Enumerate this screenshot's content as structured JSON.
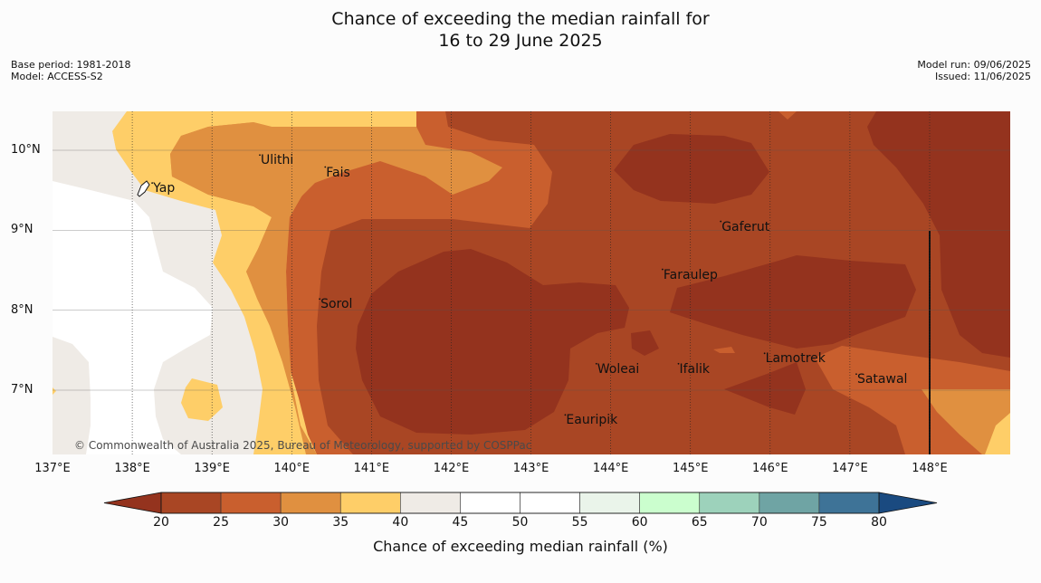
{
  "title_line1": "Chance of exceeding the median rainfall for",
  "title_line2": "16 to 29 June 2025",
  "meta_left": [
    "Base period: 1981-2018",
    "Model: ACCESS-S2"
  ],
  "meta_right": [
    "Model run: 09/06/2025",
    "Issued: 11/06/2025"
  ],
  "map": {
    "lon_range": [
      137,
      149
    ],
    "lat_range": [
      6.2,
      10.5
    ],
    "lon_ticks": [
      "137°E",
      "138°E",
      "139°E",
      "140°E",
      "141°E",
      "142°E",
      "143°E",
      "144°E",
      "145°E",
      "146°E",
      "147°E",
      "148°E"
    ],
    "lat_ticks": [
      "10°N",
      "9°N",
      "8°N",
      "7°N"
    ],
    "places": [
      {
        "name": "Ulithi",
        "lon": 139.6,
        "lat": 9.85
      },
      {
        "name": "Fais",
        "lon": 140.42,
        "lat": 9.7
      },
      {
        "name": "Yap",
        "lon": 138.25,
        "lat": 9.5
      },
      {
        "name": "Gaferut",
        "lon": 145.38,
        "lat": 9.02
      },
      {
        "name": "Faraulep",
        "lon": 144.65,
        "lat": 8.42
      },
      {
        "name": "Sorol",
        "lon": 140.35,
        "lat": 8.05
      },
      {
        "name": "Lamotrek",
        "lon": 145.93,
        "lat": 7.37
      },
      {
        "name": "Woleai",
        "lon": 143.82,
        "lat": 7.24
      },
      {
        "name": "Ifalik",
        "lon": 144.85,
        "lat": 7.24
      },
      {
        "name": "Satawal",
        "lon": 147.08,
        "lat": 7.11
      },
      {
        "name": "Eauripik",
        "lon": 143.43,
        "lat": 6.6
      }
    ],
    "copyright": "© Commonwealth of Australia 2025, Bureau of Meteorology, supported by COSPPac"
  },
  "colorbar": {
    "ticks": [
      "20",
      "25",
      "30",
      "35",
      "40",
      "45",
      "50",
      "55",
      "60",
      "65",
      "70",
      "75",
      "80"
    ],
    "colors": [
      "#a94624",
      "#c95f2e",
      "#e09040",
      "#fece68",
      "#efebe6",
      "#ffffff",
      "#ffffff",
      "#eaf4ea",
      "#cbfece",
      "#9dd2bb",
      "#6fa4a4",
      "#3e7397"
    ],
    "under_color": "#94331e",
    "over_color": "#1a4a80",
    "title": "Chance of exceeding median rainfall (%)"
  }
}
